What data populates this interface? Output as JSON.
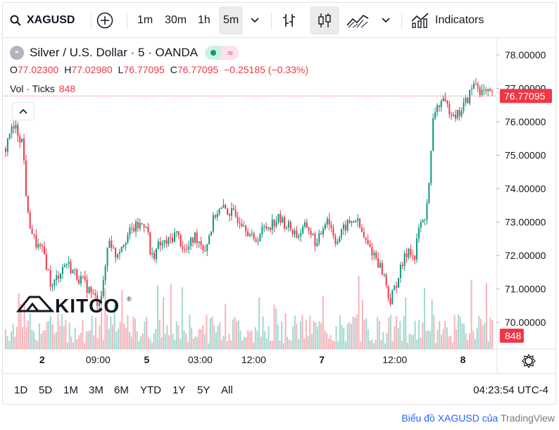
{
  "toolbar": {
    "symbol": "XAGUSD",
    "intervals": [
      "1m",
      "30m",
      "1h",
      "5m"
    ],
    "active_interval": "5m",
    "indicators_label": "Indicators"
  },
  "legend": {
    "title": "Silver / U.S. Dollar · 5 · OANDA",
    "open_label": "O",
    "open": "77.02300",
    "high_label": "H",
    "high": "77.02980",
    "low_label": "L",
    "low": "76.77095",
    "close_label": "C",
    "close": "76.77095",
    "change": "−0.25185 (−0.33%)",
    "volume_label": "Vol · Ticks",
    "volume_value": "848"
  },
  "range_buttons": [
    "1D",
    "5D",
    "1M",
    "3M",
    "6M",
    "YTD",
    "1Y",
    "5Y",
    "All"
  ],
  "clock": "04:23:54 UTC-4",
  "attribution": {
    "text": "Biểu đồ XAGUSD của",
    "brand": "TradingView"
  },
  "watermark": "KITCO",
  "colors": {
    "up": "#089981",
    "down": "#f23645",
    "text": "#131722",
    "grid": "#f0f3fa"
  },
  "chart_data": {
    "type": "candlestick",
    "title": "Silver / U.S. Dollar · 5 · OANDA",
    "y_ticks": [
      "70.00000",
      "71.00000",
      "72.00000",
      "73.00000",
      "74.00000",
      "75.00000",
      "76.00000",
      "77.00000",
      "78.00000"
    ],
    "ylim": [
      69.1,
      78.4
    ],
    "current_price_label": "76.77095",
    "current_price": 76.77095,
    "volume_label": "848",
    "x_labels": [
      {
        "label": "2",
        "bold": true,
        "t": 0.075
      },
      {
        "label": "09:00",
        "bold": false,
        "t": 0.19
      },
      {
        "label": "5",
        "bold": true,
        "t": 0.29
      },
      {
        "label": "03:00",
        "bold": false,
        "t": 0.4
      },
      {
        "label": "12:00",
        "bold": false,
        "t": 0.51
      },
      {
        "label": "7",
        "bold": true,
        "t": 0.65
      },
      {
        "label": "12:00",
        "bold": false,
        "t": 0.8
      },
      {
        "label": "8",
        "bold": true,
        "t": 0.94
      }
    ],
    "price_path": [
      [
        0.0,
        75.2
      ],
      [
        0.008,
        75.7
      ],
      [
        0.02,
        75.8
      ],
      [
        0.035,
        75.4
      ],
      [
        0.045,
        73.2
      ],
      [
        0.06,
        72.4
      ],
      [
        0.08,
        72.0
      ],
      [
        0.095,
        71.0
      ],
      [
        0.11,
        71.5
      ],
      [
        0.125,
        71.8
      ],
      [
        0.14,
        71.5
      ],
      [
        0.16,
        71.2
      ],
      [
        0.175,
        70.9
      ],
      [
        0.19,
        70.6
      ],
      [
        0.2,
        71.0
      ],
      [
        0.212,
        72.6
      ],
      [
        0.225,
        72.0
      ],
      [
        0.245,
        72.5
      ],
      [
        0.262,
        72.8
      ],
      [
        0.29,
        73.0
      ],
      [
        0.298,
        71.9
      ],
      [
        0.315,
        72.3
      ],
      [
        0.335,
        72.4
      ],
      [
        0.35,
        72.7
      ],
      [
        0.37,
        72.1
      ],
      [
        0.39,
        72.6
      ],
      [
        0.41,
        72.2
      ],
      [
        0.432,
        73.3
      ],
      [
        0.45,
        73.4
      ],
      [
        0.47,
        73.2
      ],
      [
        0.49,
        73.0
      ],
      [
        0.51,
        72.4
      ],
      [
        0.53,
        72.8
      ],
      [
        0.56,
        73.1
      ],
      [
        0.58,
        72.9
      ],
      [
        0.6,
        72.6
      ],
      [
        0.62,
        72.9
      ],
      [
        0.64,
        72.3
      ],
      [
        0.66,
        73.2
      ],
      [
        0.68,
        72.4
      ],
      [
        0.7,
        72.9
      ],
      [
        0.72,
        73.1
      ],
      [
        0.74,
        72.4
      ],
      [
        0.76,
        72.0
      ],
      [
        0.778,
        71.4
      ],
      [
        0.79,
        70.6
      ],
      [
        0.81,
        71.5
      ],
      [
        0.83,
        72.3
      ],
      [
        0.84,
        71.8
      ],
      [
        0.85,
        72.9
      ],
      [
        0.86,
        73.0
      ],
      [
        0.87,
        74.0
      ],
      [
        0.88,
        76.3
      ],
      [
        0.895,
        76.6
      ],
      [
        0.91,
        76.4
      ],
      [
        0.93,
        76.2
      ],
      [
        0.95,
        76.7
      ],
      [
        0.965,
        77.2
      ],
      [
        0.978,
        76.9
      ],
      [
        1.0,
        76.77
      ]
    ]
  }
}
